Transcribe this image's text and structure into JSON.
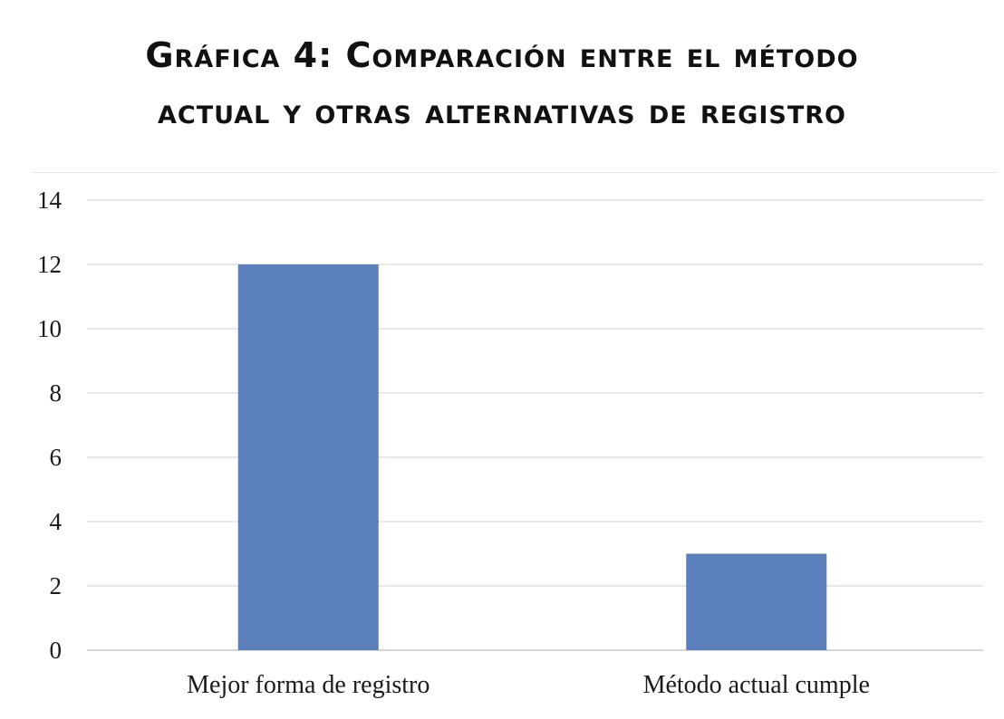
{
  "title": {
    "line1": "Gráfica 4: Comparación entre el método",
    "line2": "actual y otras alternativas de registro"
  },
  "colors": {
    "bar": "#5b7fba",
    "grid": "#d9d9d9",
    "axis": "#bfbfbf"
  },
  "chart_data": {
    "type": "bar",
    "title": "Gráfica 4: Comparación entre el método actual y otras alternativas de registro",
    "categories": [
      "Mejor forma de registro",
      "Método actual cumple"
    ],
    "values": [
      12,
      3
    ],
    "xlabel": "",
    "ylabel": "",
    "ylim": [
      0,
      14
    ],
    "yticks": [
      0,
      2,
      4,
      6,
      8,
      10,
      12,
      14
    ],
    "grid": true,
    "legend": "none"
  }
}
